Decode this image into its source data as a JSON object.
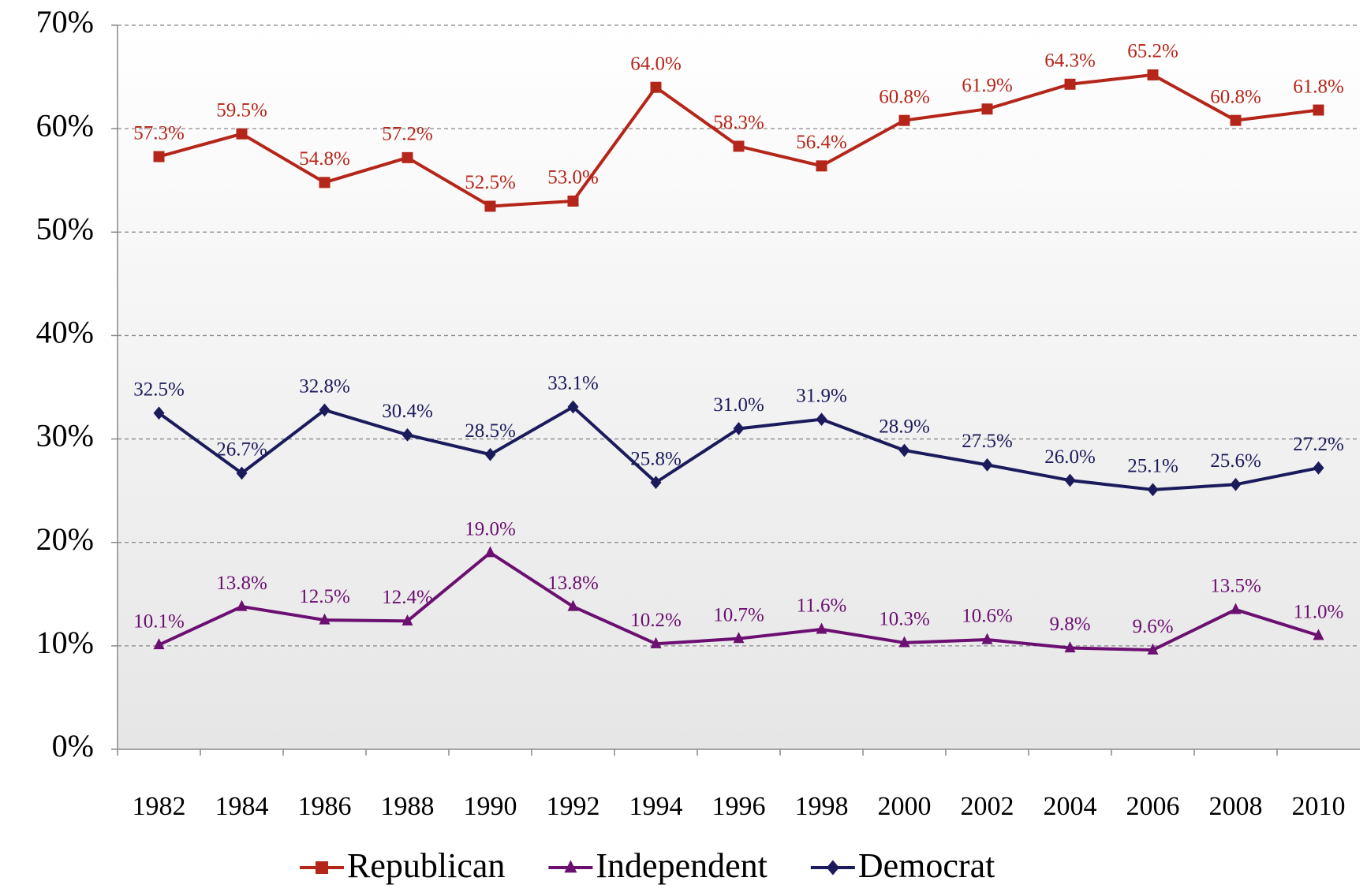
{
  "chart_data": {
    "type": "line",
    "categories": [
      "1982",
      "1984",
      "1986",
      "1988",
      "1990",
      "1992",
      "1994",
      "1996",
      "1998",
      "2000",
      "2002",
      "2004",
      "2006",
      "2008",
      "2010"
    ],
    "series": [
      {
        "name": "Republican",
        "color": "#b5261a",
        "marker": "square",
        "values": [
          57.3,
          59.5,
          54.8,
          57.2,
          52.5,
          53.0,
          64.0,
          58.3,
          56.4,
          60.8,
          61.9,
          64.3,
          65.2,
          60.8,
          61.8
        ],
        "value_labels": [
          "57.3%",
          "59.5%",
          "54.8%",
          "57.2%",
          "52.5%",
          "53.0%",
          "64.0%",
          "58.3%",
          "56.4%",
          "60.8%",
          "61.9%",
          "64.3%",
          "65.2%",
          "60.8%",
          "61.8%"
        ]
      },
      {
        "name": "Independent",
        "color": "#6b0f70",
        "marker": "triangle",
        "values": [
          10.1,
          13.8,
          12.5,
          12.4,
          19.0,
          13.8,
          10.2,
          10.7,
          11.6,
          10.3,
          10.6,
          9.8,
          9.6,
          13.5,
          11.0
        ],
        "value_labels": [
          "10.1%",
          "13.8%",
          "12.5%",
          "12.4%",
          "19.0%",
          "13.8%",
          "10.2%",
          "10.7%",
          "11.6%",
          "10.3%",
          "10.6%",
          "9.8%",
          "9.6%",
          "13.5%",
          "11.0%"
        ]
      },
      {
        "name": "Democrat",
        "color": "#1b1b5c",
        "marker": "diamond",
        "values": [
          32.5,
          26.7,
          32.8,
          30.4,
          28.5,
          33.1,
          25.8,
          31.0,
          31.9,
          28.9,
          27.5,
          26.0,
          25.1,
          25.6,
          27.2
        ],
        "value_labels": [
          "32.5%",
          "26.7%",
          "32.8%",
          "30.4%",
          "28.5%",
          "33.1%",
          "25.8%",
          "31.0%",
          "31.9%",
          "28.9%",
          "27.5%",
          "26.0%",
          "25.1%",
          "25.6%",
          "27.2%"
        ]
      }
    ],
    "ylim": [
      0,
      70
    ],
    "yticks": [
      {
        "value": 0,
        "label": "0%"
      },
      {
        "value": 10,
        "label": "10%"
      },
      {
        "value": 20,
        "label": "20%"
      },
      {
        "value": 30,
        "label": "30%"
      },
      {
        "value": 40,
        "label": "40%"
      },
      {
        "value": 50,
        "label": "50%"
      },
      {
        "value": 60,
        "label": "60%"
      },
      {
        "value": 70,
        "label": "70%"
      }
    ],
    "grid": true,
    "legend": "bottom"
  }
}
